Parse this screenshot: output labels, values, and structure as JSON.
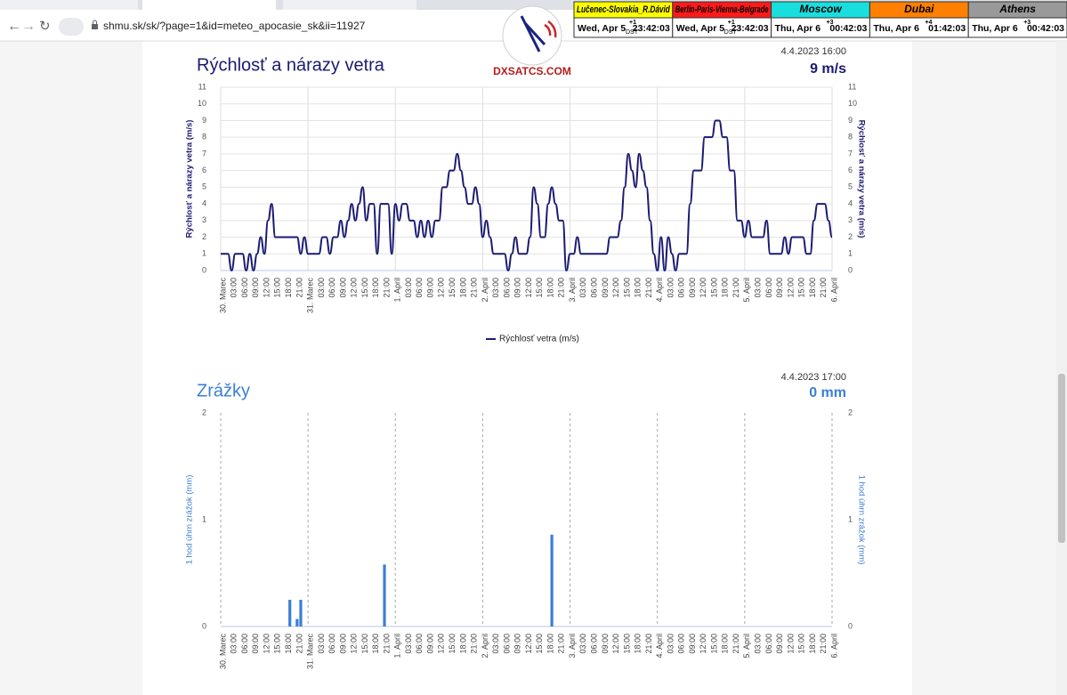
{
  "browser": {
    "url": "shmu.sk/sk/?page=1&id=meteo_apocasie_sk&ii=11927"
  },
  "logo": {
    "text": "DXSATCS.COM"
  },
  "clocks": [
    {
      "city": "Lučenec-Slovakia_R.Dávid",
      "offset": "+1",
      "date": "Wed, Apr 5",
      "dst": "DST",
      "time": "23:42:03",
      "color": "#ffff00"
    },
    {
      "city": "Berlin-Paris-Vienna-Belgrade",
      "offset": "+1",
      "date": "Wed, Apr 5",
      "dst": "DST",
      "time": "23:42:03",
      "color": "#ff1a1a"
    },
    {
      "city": "Moscow",
      "offset": "+3",
      "date": "Thu, Apr 6",
      "time": "00:42:03",
      "color": "#19dede"
    },
    {
      "city": "Dubai",
      "offset": "+4",
      "date": "Thu, Apr 6",
      "time": "01:42:03",
      "color": "#ff8000"
    },
    {
      "city": "Athens",
      "offset": "+3",
      "date": "Thu, Apr 6",
      "time": "00:42:03",
      "color": "#999999"
    }
  ],
  "chart_data": [
    {
      "type": "line",
      "title": "Rýchlosť a nárazy vetra",
      "timestamp": "4.4.2023 16:00",
      "current_value": "9 m/s",
      "y_label": "Rýchlosť a nárazy vetra (m/s)",
      "categories": [
        "30. Marec",
        null,
        null,
        "03:00",
        null,
        null,
        "06:00",
        null,
        null,
        "09:00",
        null,
        null,
        "12:00",
        null,
        null,
        "15:00",
        null,
        null,
        "18:00",
        null,
        null,
        "21:00",
        null,
        null,
        "31. Marec",
        null,
        null,
        "03:00",
        null,
        null,
        "06:00",
        null,
        null,
        "09:00",
        null,
        null,
        "12:00",
        null,
        null,
        "15:00",
        null,
        null,
        "18:00",
        null,
        null,
        "21:00",
        null,
        null,
        "1. April",
        null,
        null,
        "03:00",
        null,
        null,
        "06:00",
        null,
        null,
        "09:00",
        null,
        null,
        "12:00",
        null,
        null,
        "15:00",
        null,
        null,
        "18:00",
        null,
        null,
        "21:00",
        null,
        null,
        "2. April",
        null,
        null,
        "03:00",
        null,
        null,
        "06:00",
        null,
        null,
        "09:00",
        null,
        null,
        "12:00",
        null,
        null,
        "15:00",
        null,
        null,
        "18:00",
        null,
        null,
        "21:00",
        null,
        null,
        "3. April",
        null,
        null,
        "03:00",
        null,
        null,
        "06:00",
        null,
        null,
        "09:00",
        null,
        null,
        "12:00",
        null,
        null,
        "15:00",
        null,
        null,
        "18:00",
        null,
        null,
        "21:00",
        null,
        null,
        "4. April",
        null,
        null,
        "03:00",
        null,
        null,
        "06:00",
        null,
        null,
        "09:00",
        null,
        null,
        "12:00",
        null,
        null,
        "15:00",
        null,
        null,
        "18:00",
        null,
        null,
        "21:00",
        null,
        null,
        "5. April",
        null,
        null,
        "03:00",
        null,
        null,
        "06:00",
        null,
        null,
        "09:00",
        null,
        null,
        "12:00",
        null,
        null,
        "15:00",
        null,
        null,
        "18:00",
        null,
        null,
        "21:00",
        null,
        null,
        "6. April"
      ],
      "series": [
        {
          "name": "Rýchlosť vetra (m/s)",
          "color": "#1a1a72",
          "values": [
            1,
            1,
            1,
            0,
            1,
            1,
            1,
            0,
            1,
            0,
            1,
            2,
            1,
            3,
            4,
            2,
            2,
            2,
            2,
            2,
            2,
            2,
            1,
            2,
            1,
            1,
            1,
            1,
            2,
            2,
            1,
            2,
            2,
            3,
            2,
            3,
            4,
            3,
            4,
            5,
            3,
            4,
            4,
            1,
            4,
            4,
            4,
            1,
            4,
            3,
            4,
            4,
            3,
            3,
            2,
            3,
            2,
            3,
            2,
            3,
            3,
            5,
            5,
            6,
            6,
            7,
            6,
            5,
            4,
            4,
            5,
            4,
            2,
            3,
            2,
            1,
            1,
            1,
            1,
            0,
            1,
            2,
            1,
            1,
            1,
            2,
            5,
            4,
            2,
            2,
            4,
            5,
            4,
            3,
            3,
            0,
            1,
            1,
            2,
            1,
            1,
            1,
            1,
            1,
            1,
            1,
            1,
            2,
            2,
            2,
            3,
            5,
            7,
            6,
            5,
            7,
            6,
            5,
            3,
            1,
            0,
            2,
            0,
            2,
            1,
            0,
            1,
            1,
            1,
            4,
            6,
            6,
            6,
            8,
            8,
            8,
            9,
            9,
            8,
            8,
            6,
            6,
            3,
            3,
            2,
            3,
            2,
            2,
            2,
            2,
            3,
            1,
            1,
            1,
            1,
            2,
            1,
            2,
            2,
            2,
            2,
            1,
            1,
            3,
            4,
            4,
            4,
            3,
            2
          ]
        }
      ],
      "ylim": [
        0,
        11
      ],
      "yticks": [
        0,
        1,
        2,
        3,
        4,
        5,
        6,
        7,
        8,
        9,
        10,
        11
      ],
      "grid": true,
      "legend": "bottom"
    },
    {
      "type": "bar",
      "title": "Zrážky",
      "timestamp": "4.4.2023 17:00",
      "current_value": "0 mm",
      "y_label": "1 hod úhrn zrážok (mm)",
      "categories": [
        "30. Marec",
        null,
        null,
        "03:00",
        null,
        null,
        "06:00",
        null,
        null,
        "09:00",
        null,
        null,
        "12:00",
        null,
        null,
        "15:00",
        null,
        null,
        "18:00",
        null,
        null,
        "21:00",
        null,
        null,
        "31. Marec",
        null,
        null,
        "03:00",
        null,
        null,
        "06:00",
        null,
        null,
        "09:00",
        null,
        null,
        "12:00",
        null,
        null,
        "15:00",
        null,
        null,
        "18:00",
        null,
        null,
        "21:00",
        null,
        null,
        "1. April",
        null,
        null,
        "03:00",
        null,
        null,
        "06:00",
        null,
        null,
        "09:00",
        null,
        null,
        "12:00",
        null,
        null,
        "15:00",
        null,
        null,
        "18:00",
        null,
        null,
        "21:00",
        null,
        null,
        "2. April",
        null,
        null,
        "03:00",
        null,
        null,
        "06:00",
        null,
        null,
        "09:00",
        null,
        null,
        "12:00",
        null,
        null,
        "15:00",
        null,
        null,
        "18:00",
        null,
        null,
        "21:00",
        null,
        null,
        "3. April",
        null,
        null,
        "03:00",
        null,
        null,
        "06:00",
        null,
        null,
        "09:00",
        null,
        null,
        "12:00",
        null,
        null,
        "15:00",
        null,
        null,
        "18:00",
        null,
        null,
        "21:00",
        null,
        null,
        "4. April",
        null,
        null,
        "03:00",
        null,
        null,
        "06:00",
        null,
        null,
        "09:00",
        null,
        null,
        "12:00",
        null,
        null,
        "15:00",
        null,
        null,
        "18:00",
        null,
        null,
        "21:00",
        null,
        null,
        "5. April",
        null,
        null,
        "03:00",
        null,
        null,
        "06:00",
        null,
        null,
        "09:00",
        null,
        null,
        "12:00",
        null,
        null,
        "15:00",
        null,
        null,
        "18:00",
        null,
        null,
        "21:00",
        null,
        null,
        "6. April"
      ],
      "values": [
        0,
        0,
        0,
        0,
        0,
        0,
        0,
        0,
        0,
        0,
        0,
        0,
        0,
        0,
        0,
        0,
        0,
        0,
        0,
        0.25,
        0,
        0.07,
        0.25,
        0,
        0,
        0,
        0,
        0,
        0,
        0,
        0,
        0,
        0,
        0,
        0,
        0,
        0,
        0,
        0,
        0,
        0,
        0,
        0,
        0,
        0,
        0.58,
        0,
        0,
        0,
        0,
        0,
        0,
        0,
        0,
        0,
        0,
        0,
        0,
        0,
        0,
        0,
        0,
        0,
        0,
        0,
        0,
        0,
        0,
        0,
        0,
        0,
        0,
        0,
        0,
        0,
        0,
        0,
        0,
        0,
        0,
        0,
        0,
        0,
        0,
        0,
        0,
        0,
        0,
        0,
        0,
        0,
        0.86,
        0,
        0,
        0,
        0,
        0,
        0,
        0,
        0,
        0,
        0,
        0,
        0,
        0,
        0,
        0,
        0,
        0,
        0,
        0,
        0,
        0,
        0,
        0,
        0,
        0,
        0,
        0,
        0,
        0,
        0,
        0,
        0,
        0,
        0,
        0,
        0,
        0,
        0,
        0,
        0,
        0,
        0,
        0,
        0,
        0,
        0,
        0,
        0,
        0,
        0,
        0,
        0,
        0,
        0,
        0,
        0,
        0,
        0,
        0,
        0,
        0,
        0,
        0,
        0,
        0,
        0,
        0,
        0,
        0,
        0,
        0,
        0,
        0,
        0,
        0,
        0,
        0
      ],
      "color": "#3a7fd5",
      "ylim": [
        0,
        2
      ],
      "yticks": [
        0,
        1,
        2
      ],
      "grid": false
    }
  ]
}
